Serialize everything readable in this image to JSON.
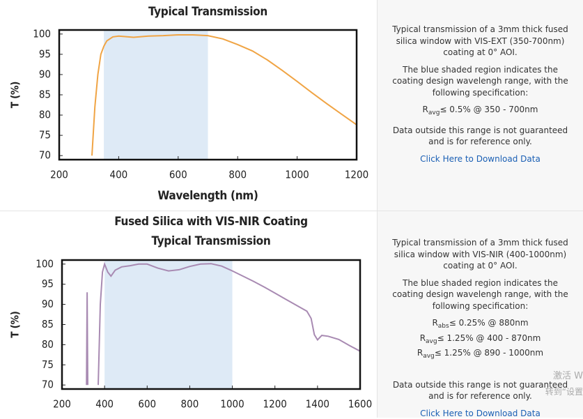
{
  "chart_data": [
    {
      "type": "line",
      "title": "Typical Transmission",
      "xlabel": "Wavelength (nm)",
      "ylabel": "T (%)",
      "xlim": [
        200,
        1200
      ],
      "ylim": [
        69,
        101
      ],
      "xticks": [
        200,
        400,
        600,
        800,
        1000,
        1200
      ],
      "yticks": [
        70,
        75,
        80,
        85,
        90,
        95,
        100
      ],
      "shade": [
        350,
        700
      ],
      "shade_color": "#deeaf6",
      "grid": false,
      "x": [
        310,
        320,
        330,
        340,
        350,
        360,
        380,
        400,
        450,
        500,
        550,
        600,
        650,
        700,
        750,
        800,
        850,
        900,
        950,
        1000,
        1050,
        1100,
        1150,
        1200
      ],
      "series": [
        {
          "color": "#f0a444",
          "values": [
            70,
            82,
            90,
            95,
            97,
            98.3,
            99.3,
            99.5,
            99.2,
            99.5,
            99.6,
            99.8,
            99.8,
            99.6,
            98.8,
            97.4,
            95.8,
            93.6,
            91,
            88.3,
            85.5,
            82.8,
            80.2,
            77.6
          ]
        }
      ]
    },
    {
      "type": "line",
      "title": "Fused Silica with VIS-NIR Coating",
      "subtitle": "Typical Transmission",
      "ylabel": "T (%)",
      "xlim": [
        200,
        1600
      ],
      "ylim": [
        69,
        101
      ],
      "xticks": [
        200,
        400,
        600,
        800,
        1000,
        1200,
        1400,
        1600
      ],
      "yticks": [
        70,
        75,
        80,
        85,
        90,
        95,
        100
      ],
      "shade": [
        400,
        1000
      ],
      "shade_color": "#deeaf6",
      "grid": false,
      "x": [
        315,
        318,
        321,
        345,
        370,
        380,
        390,
        400,
        415,
        430,
        450,
        480,
        520,
        560,
        600,
        650,
        700,
        750,
        800,
        850,
        900,
        950,
        1000,
        1050,
        1100,
        1150,
        1200,
        1250,
        1300,
        1350,
        1370,
        1385,
        1400,
        1420,
        1450,
        1500,
        1550,
        1600
      ],
      "series": [
        {
          "color": "#a88ab2",
          "values": [
            70,
            93,
            70,
            null,
            70,
            90,
            98,
            100,
            98,
            97,
            98.5,
            99.3,
            99.6,
            100,
            100,
            99,
            98.3,
            98.6,
            99.4,
            100,
            100.1,
            99.5,
            98.3,
            97,
            95.7,
            94.3,
            92.8,
            91.3,
            89.8,
            88.3,
            86.5,
            82.5,
            81.2,
            82.3,
            82.1,
            81.3,
            79.8,
            78.4
          ]
        }
      ]
    }
  ],
  "panels": [
    {
      "description": "Typical transmission of a 3mm thick fused silica window with VIS-EXT (350-700nm) coating at 0° AOI.",
      "note": "The blue shaded region indicates the coating design wavelengh range, with the following specification:",
      "specs": [
        {
          "symbol": "R",
          "sub": "avg",
          "text": "≤ 0.5% @ 350 - 700nm"
        }
      ],
      "disclaimer": "Data outside this range is not guaranteed and is for reference only.",
      "link": "Click Here to Download Data"
    },
    {
      "description": "Typical transmission of a 3mm thick fused silica window with VIS-NIR (400-1000nm) coating at 0° AOI.",
      "note": "The blue shaded region indicates the coating design wavelengh range, with the following specification:",
      "specs": [
        {
          "symbol": "R",
          "sub": "abs",
          "text": "≤ 0.25% @ 880nm"
        },
        {
          "symbol": "R",
          "sub": "avg",
          "text": "≤ 1.25% @ 400 - 870nm"
        },
        {
          "symbol": "R",
          "sub": "avg",
          "text": "≤ 1.25% @ 890 - 1000nm"
        }
      ],
      "disclaimer": "Data outside this range is not guaranteed and is for reference only.",
      "link": "Click Here to Download Data"
    }
  ],
  "watermark": [
    "激活 W",
    "转到“设置"
  ]
}
